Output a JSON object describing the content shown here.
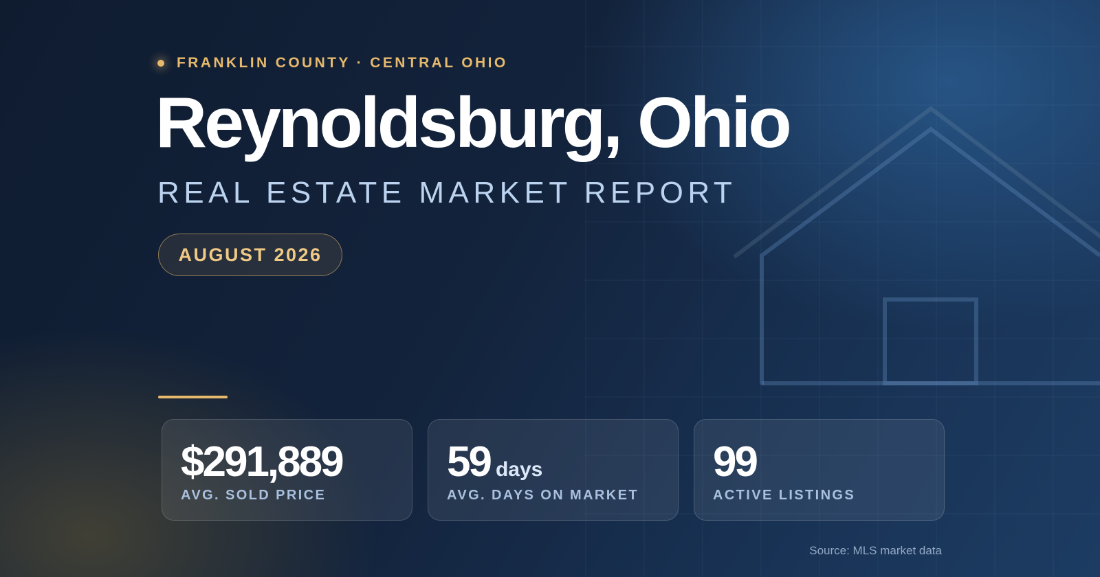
{
  "header": {
    "eyebrow": "FRANKLIN COUNTY · CENTRAL OHIO",
    "title": "Reynoldsburg, Ohio",
    "subtitle": "REAL ESTATE MARKET REPORT",
    "badge": "AUGUST 2026"
  },
  "stats": [
    {
      "value": "$291,889",
      "label": "AVG. SOLD PRICE"
    },
    {
      "value": "59",
      "unit": "days",
      "label": "AVG. DAYS ON MARKET"
    },
    {
      "value": "99",
      "label": "ACTIVE LISTINGS"
    }
  ],
  "footer": {
    "source": "Source: MLS market data"
  }
}
